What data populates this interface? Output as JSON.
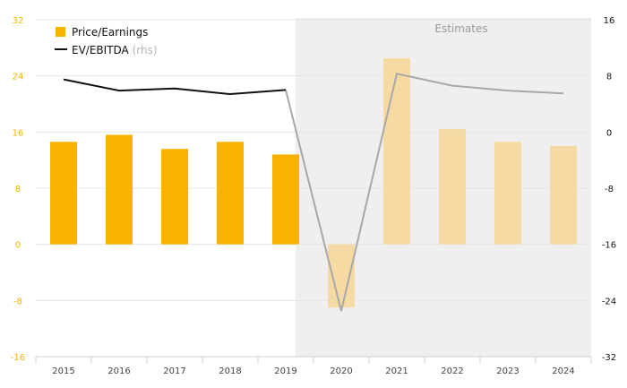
{
  "chart_data": {
    "type": "bar",
    "categories": [
      "2015",
      "2016",
      "2017",
      "2018",
      "2019",
      "2020",
      "2021",
      "2022",
      "2023",
      "2024"
    ],
    "estimate_start": "2020",
    "estimates_label": "Estimates",
    "series": [
      {
        "name": "Price/Earnings",
        "axis": "left",
        "type": "bar",
        "values": [
          14.6,
          15.6,
          13.6,
          14.6,
          12.8,
          -9.0,
          26.5,
          16.4,
          14.6,
          14.0
        ]
      },
      {
        "name": "EV/EBITDA",
        "name_suffix": "(rhs)",
        "axis": "right",
        "type": "line",
        "values": [
          7.5,
          5.9,
          6.2,
          5.4,
          6.0,
          -25.5,
          8.3,
          6.6,
          5.9,
          5.5
        ]
      }
    ],
    "y_left": {
      "min": -16,
      "max": 32,
      "ticks": [
        "32",
        "24",
        "16",
        "8",
        "0",
        "-8",
        "-16"
      ]
    },
    "y_right": {
      "min": -32,
      "max": 16,
      "ticks": [
        "16",
        "8",
        "0",
        "-8",
        "-16",
        "-24",
        "-32"
      ]
    },
    "colors": {
      "bar_actual": "#f9b200",
      "bar_estimate": "#f5dba3",
      "line_actual": "#111111",
      "line_estimate": "#a8a8a8",
      "estimate_bg": "#efefef",
      "left_tick": "#f5b400",
      "grid": "#e6e6e6"
    }
  }
}
